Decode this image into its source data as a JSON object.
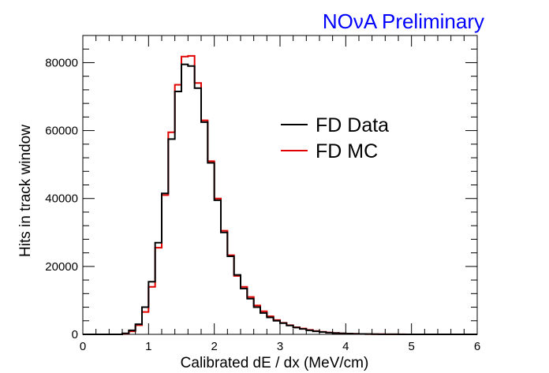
{
  "banner": "NOνA Preliminary",
  "chart_data": {
    "type": "histogram",
    "xlabel": "Calibrated dE / dx (MeV/cm)",
    "ylabel": "Hits in track window",
    "xlim": [
      0,
      6
    ],
    "ylim": [
      0,
      88000
    ],
    "x_ticks": [
      0,
      1,
      2,
      3,
      4,
      5,
      6
    ],
    "y_ticks": [
      0,
      20000,
      40000,
      60000,
      80000
    ],
    "legend_position": "upper-right",
    "bin_width": 0.1,
    "bin_edges_start": 0.0,
    "series": [
      {
        "name": "FD Data",
        "color": "#000000",
        "values": [
          0,
          0,
          0,
          0,
          0,
          0,
          300,
          1200,
          3000,
          8000,
          15500,
          27000,
          41500,
          57500,
          71500,
          79500,
          79000,
          72500,
          62500,
          50500,
          39500,
          30000,
          23000,
          17500,
          13500,
          10500,
          8000,
          6300,
          5000,
          4000,
          3300,
          2600,
          2000,
          1600,
          1200,
          900,
          700,
          500,
          380,
          280,
          200,
          150,
          110,
          80,
          60,
          40,
          30,
          20,
          15,
          10,
          8,
          6,
          5,
          4,
          3,
          2,
          1,
          1,
          0,
          0
        ]
      },
      {
        "name": "FD MC",
        "color": "#e00000",
        "values": [
          0,
          0,
          0,
          0,
          0,
          0,
          200,
          900,
          2700,
          6600,
          14000,
          25500,
          41000,
          59500,
          73500,
          81800,
          82000,
          74000,
          63000,
          51000,
          40000,
          30500,
          23300,
          17200,
          14000,
          11000,
          8500,
          6800,
          5300,
          4200,
          3400,
          2700,
          2100,
          1700,
          1300,
          1000,
          750,
          550,
          400,
          300,
          220,
          160,
          120,
          90,
          65,
          45,
          35,
          25,
          18,
          12,
          9,
          7,
          5,
          4,
          3,
          2,
          1,
          1,
          0,
          0
        ]
      }
    ]
  }
}
